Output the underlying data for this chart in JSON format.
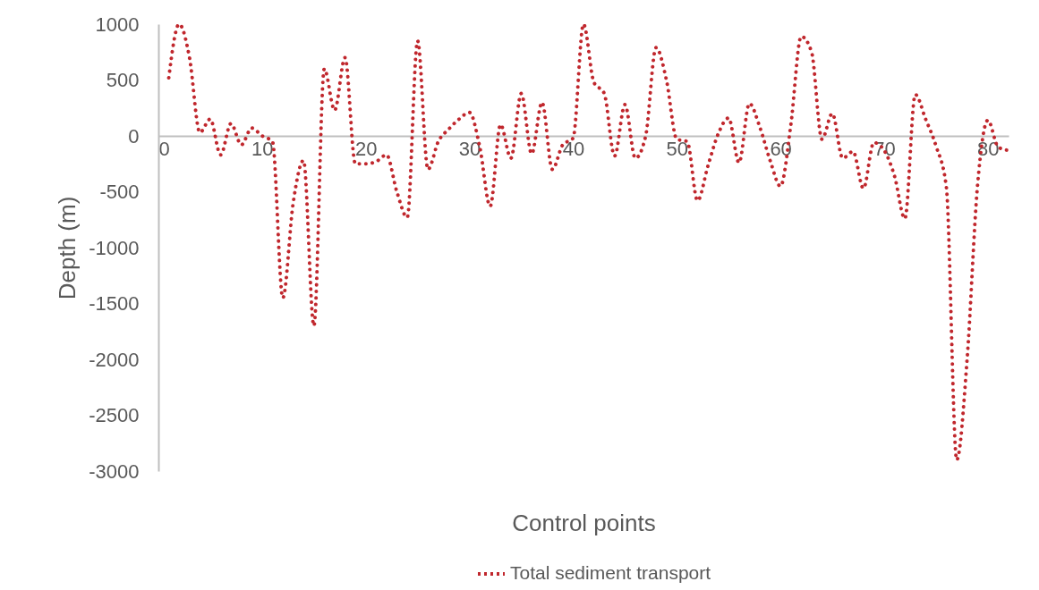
{
  "chart_data": {
    "type": "line",
    "xlabel": "Control points",
    "ylabel": "Depth (m)",
    "x": [
      1,
      2,
      3,
      4,
      5,
      6,
      7,
      8,
      9,
      10,
      11,
      12,
      13,
      14,
      15,
      16,
      17,
      18,
      19,
      20,
      21,
      22,
      23,
      24,
      25,
      26,
      27,
      28,
      29,
      30,
      31,
      32,
      33,
      34,
      35,
      36,
      37,
      38,
      39,
      40,
      41,
      42,
      43,
      44,
      45,
      46,
      47,
      48,
      49,
      50,
      51,
      52,
      53,
      54,
      55,
      56,
      57,
      58,
      59,
      60,
      61,
      62,
      63,
      64,
      65,
      66,
      67,
      68,
      69,
      70,
      71,
      72,
      73,
      74,
      75,
      76,
      77,
      78,
      79,
      80,
      81,
      82
    ],
    "series": [
      {
        "name": "Total sediment transport",
        "color": "#c0272d",
        "values": [
          520,
          1000,
          700,
          30,
          150,
          -170,
          110,
          -80,
          70,
          0,
          -50,
          -1450,
          -600,
          -220,
          -1700,
          600,
          230,
          700,
          -250,
          -250,
          -230,
          -170,
          -500,
          -730,
          850,
          -300,
          -50,
          60,
          150,
          210,
          -100,
          -630,
          100,
          -200,
          380,
          -160,
          300,
          -300,
          -80,
          -20,
          1000,
          480,
          380,
          -180,
          280,
          -200,
          0,
          790,
          500,
          -30,
          -50,
          -580,
          -270,
          20,
          160,
          -240,
          290,
          80,
          -220,
          -450,
          100,
          890,
          750,
          -30,
          200,
          -200,
          -140,
          -470,
          -60,
          -130,
          -360,
          -740,
          370,
          150,
          -90,
          -460,
          -2900,
          -2000,
          -450,
          140,
          -100,
          -130
        ]
      }
    ],
    "xlim": [
      0,
      82
    ],
    "xticks": [
      0,
      10,
      20,
      30,
      40,
      50,
      60,
      70,
      80
    ],
    "ylim": [
      -3000,
      1000
    ],
    "yticks": [
      -3000,
      -2500,
      -2000,
      -1500,
      -1000,
      -500,
      0,
      500,
      1000
    ],
    "grid": false,
    "legend": "bottom",
    "marker": "none",
    "line_style": "dotted"
  }
}
